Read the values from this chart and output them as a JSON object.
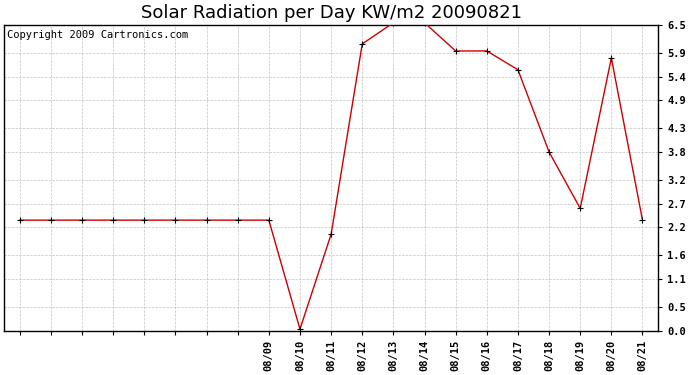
{
  "title": "Solar Radiation per Day KW/m2 20090821",
  "copyright": "Copyright 2009 Cartronics.com",
  "x_labels_visible": [
    "08/09",
    "08/10",
    "08/11",
    "08/12",
    "08/13",
    "08/14",
    "08/15",
    "08/16",
    "08/17",
    "08/18",
    "08/19",
    "08/20",
    "08/21"
  ],
  "n_total_points": 21,
  "n_unlabeled": 8,
  "values": [
    2.35,
    2.35,
    2.35,
    2.35,
    2.35,
    2.35,
    2.35,
    2.35,
    2.35,
    0.03,
    2.05,
    6.1,
    6.55,
    6.55,
    5.95,
    5.95,
    5.55,
    3.8,
    2.6,
    5.8,
    2.35
  ],
  "ylim": [
    0.0,
    6.5
  ],
  "yticks": [
    0.0,
    0.5,
    1.1,
    1.6,
    2.2,
    2.7,
    3.2,
    3.8,
    4.3,
    4.9,
    5.4,
    5.9,
    6.5
  ],
  "line_color": "#cc0000",
  "marker_color": "#000000",
  "bg_color": "#ffffff",
  "grid_color": "#aaaaaa",
  "title_fontsize": 13,
  "copyright_fontsize": 7.5,
  "tick_fontsize": 7.5,
  "fig_width": 6.9,
  "fig_height": 3.75,
  "dpi": 100
}
